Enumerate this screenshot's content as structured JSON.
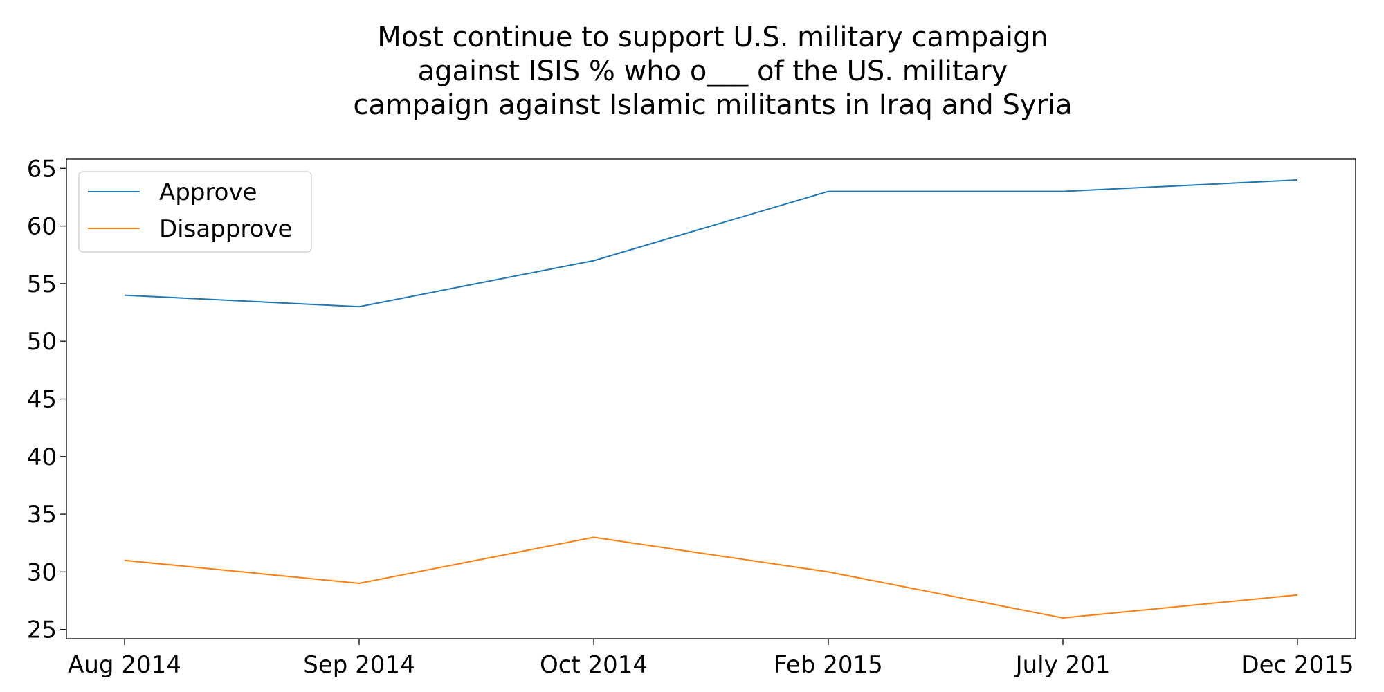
{
  "chart_data": {
    "type": "line",
    "title": "Most continue to support U.S. military campaign against ISIS % who o___ of the US. military campaign against Islamic militants in Iraq and Syria",
    "categories": [
      "Aug 2014",
      "Sep 2014",
      "Oct 2014",
      "Feb 2015",
      "July 201",
      "Dec 2015"
    ],
    "series": [
      {
        "name": "Approve",
        "color": "#1f77b4",
        "values": [
          54,
          53,
          57,
          63,
          63,
          64
        ]
      },
      {
        "name": "Disapprove",
        "color": "#ff7f0e",
        "values": [
          31,
          29,
          33,
          30,
          26,
          28
        ]
      }
    ],
    "xlabel": "",
    "ylabel": "",
    "ylim": [
      24.2,
      65.8
    ],
    "yticks": [
      25,
      30,
      35,
      40,
      45,
      50,
      55,
      60,
      65
    ],
    "grid": false,
    "legend_position": "upper-left"
  }
}
